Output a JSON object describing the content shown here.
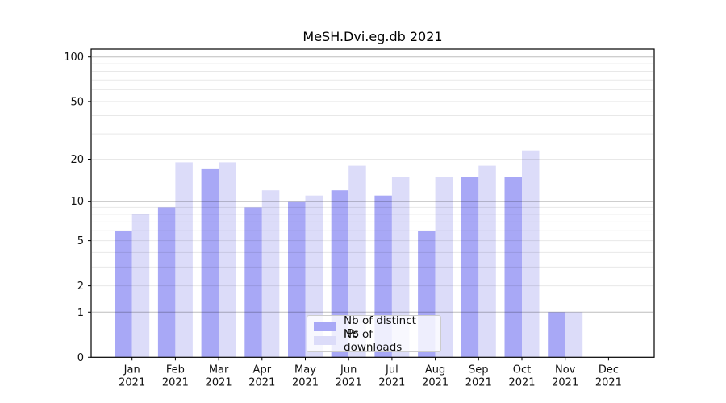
{
  "figure": {
    "title": "MeSH.Dvi.eg.db 2021"
  },
  "chart_data": {
    "type": "bar",
    "title": "MeSH.Dvi.eg.db 2021",
    "xlabel": "",
    "ylabel": "",
    "categories": [
      "Jan 2021",
      "Feb 2021",
      "Mar 2021",
      "Apr 2021",
      "May 2021",
      "Jun 2021",
      "Jul 2021",
      "Aug 2021",
      "Sep 2021",
      "Oct 2021",
      "Nov 2021",
      "Dec 2021"
    ],
    "series": [
      {
        "name": "Nb of distinct IPs",
        "color": "#a8a8f6",
        "values": [
          6,
          9,
          17,
          9,
          10,
          12,
          11,
          6,
          15,
          15,
          1,
          0
        ]
      },
      {
        "name": "Nb of downloads",
        "color": "#dcdcf9",
        "values": [
          8,
          19,
          19,
          12,
          11,
          18,
          15,
          15,
          18,
          23,
          1,
          0
        ]
      }
    ],
    "yscale": "log1p",
    "ylim": [
      0,
      113
    ],
    "yticks": [
      0,
      1,
      2,
      5,
      10,
      20,
      50,
      100
    ],
    "gridlines": {
      "major": [
        1,
        10,
        100
      ],
      "minor": [
        2,
        3,
        4,
        5,
        6,
        7,
        8,
        9,
        20,
        30,
        40,
        50,
        60,
        70,
        80,
        90
      ]
    },
    "grid_on": true,
    "legend_position": "bottom-center"
  },
  "colors": {
    "bar_dark": "#a8a8f6",
    "bar_light": "#dcdcf9",
    "grid_major": "rgba(0,0,0,0.26)",
    "grid_minor": "rgba(0,0,0,0.09)",
    "spine": "#000000",
    "tick_label": "#111111",
    "background": "#ffffff"
  }
}
